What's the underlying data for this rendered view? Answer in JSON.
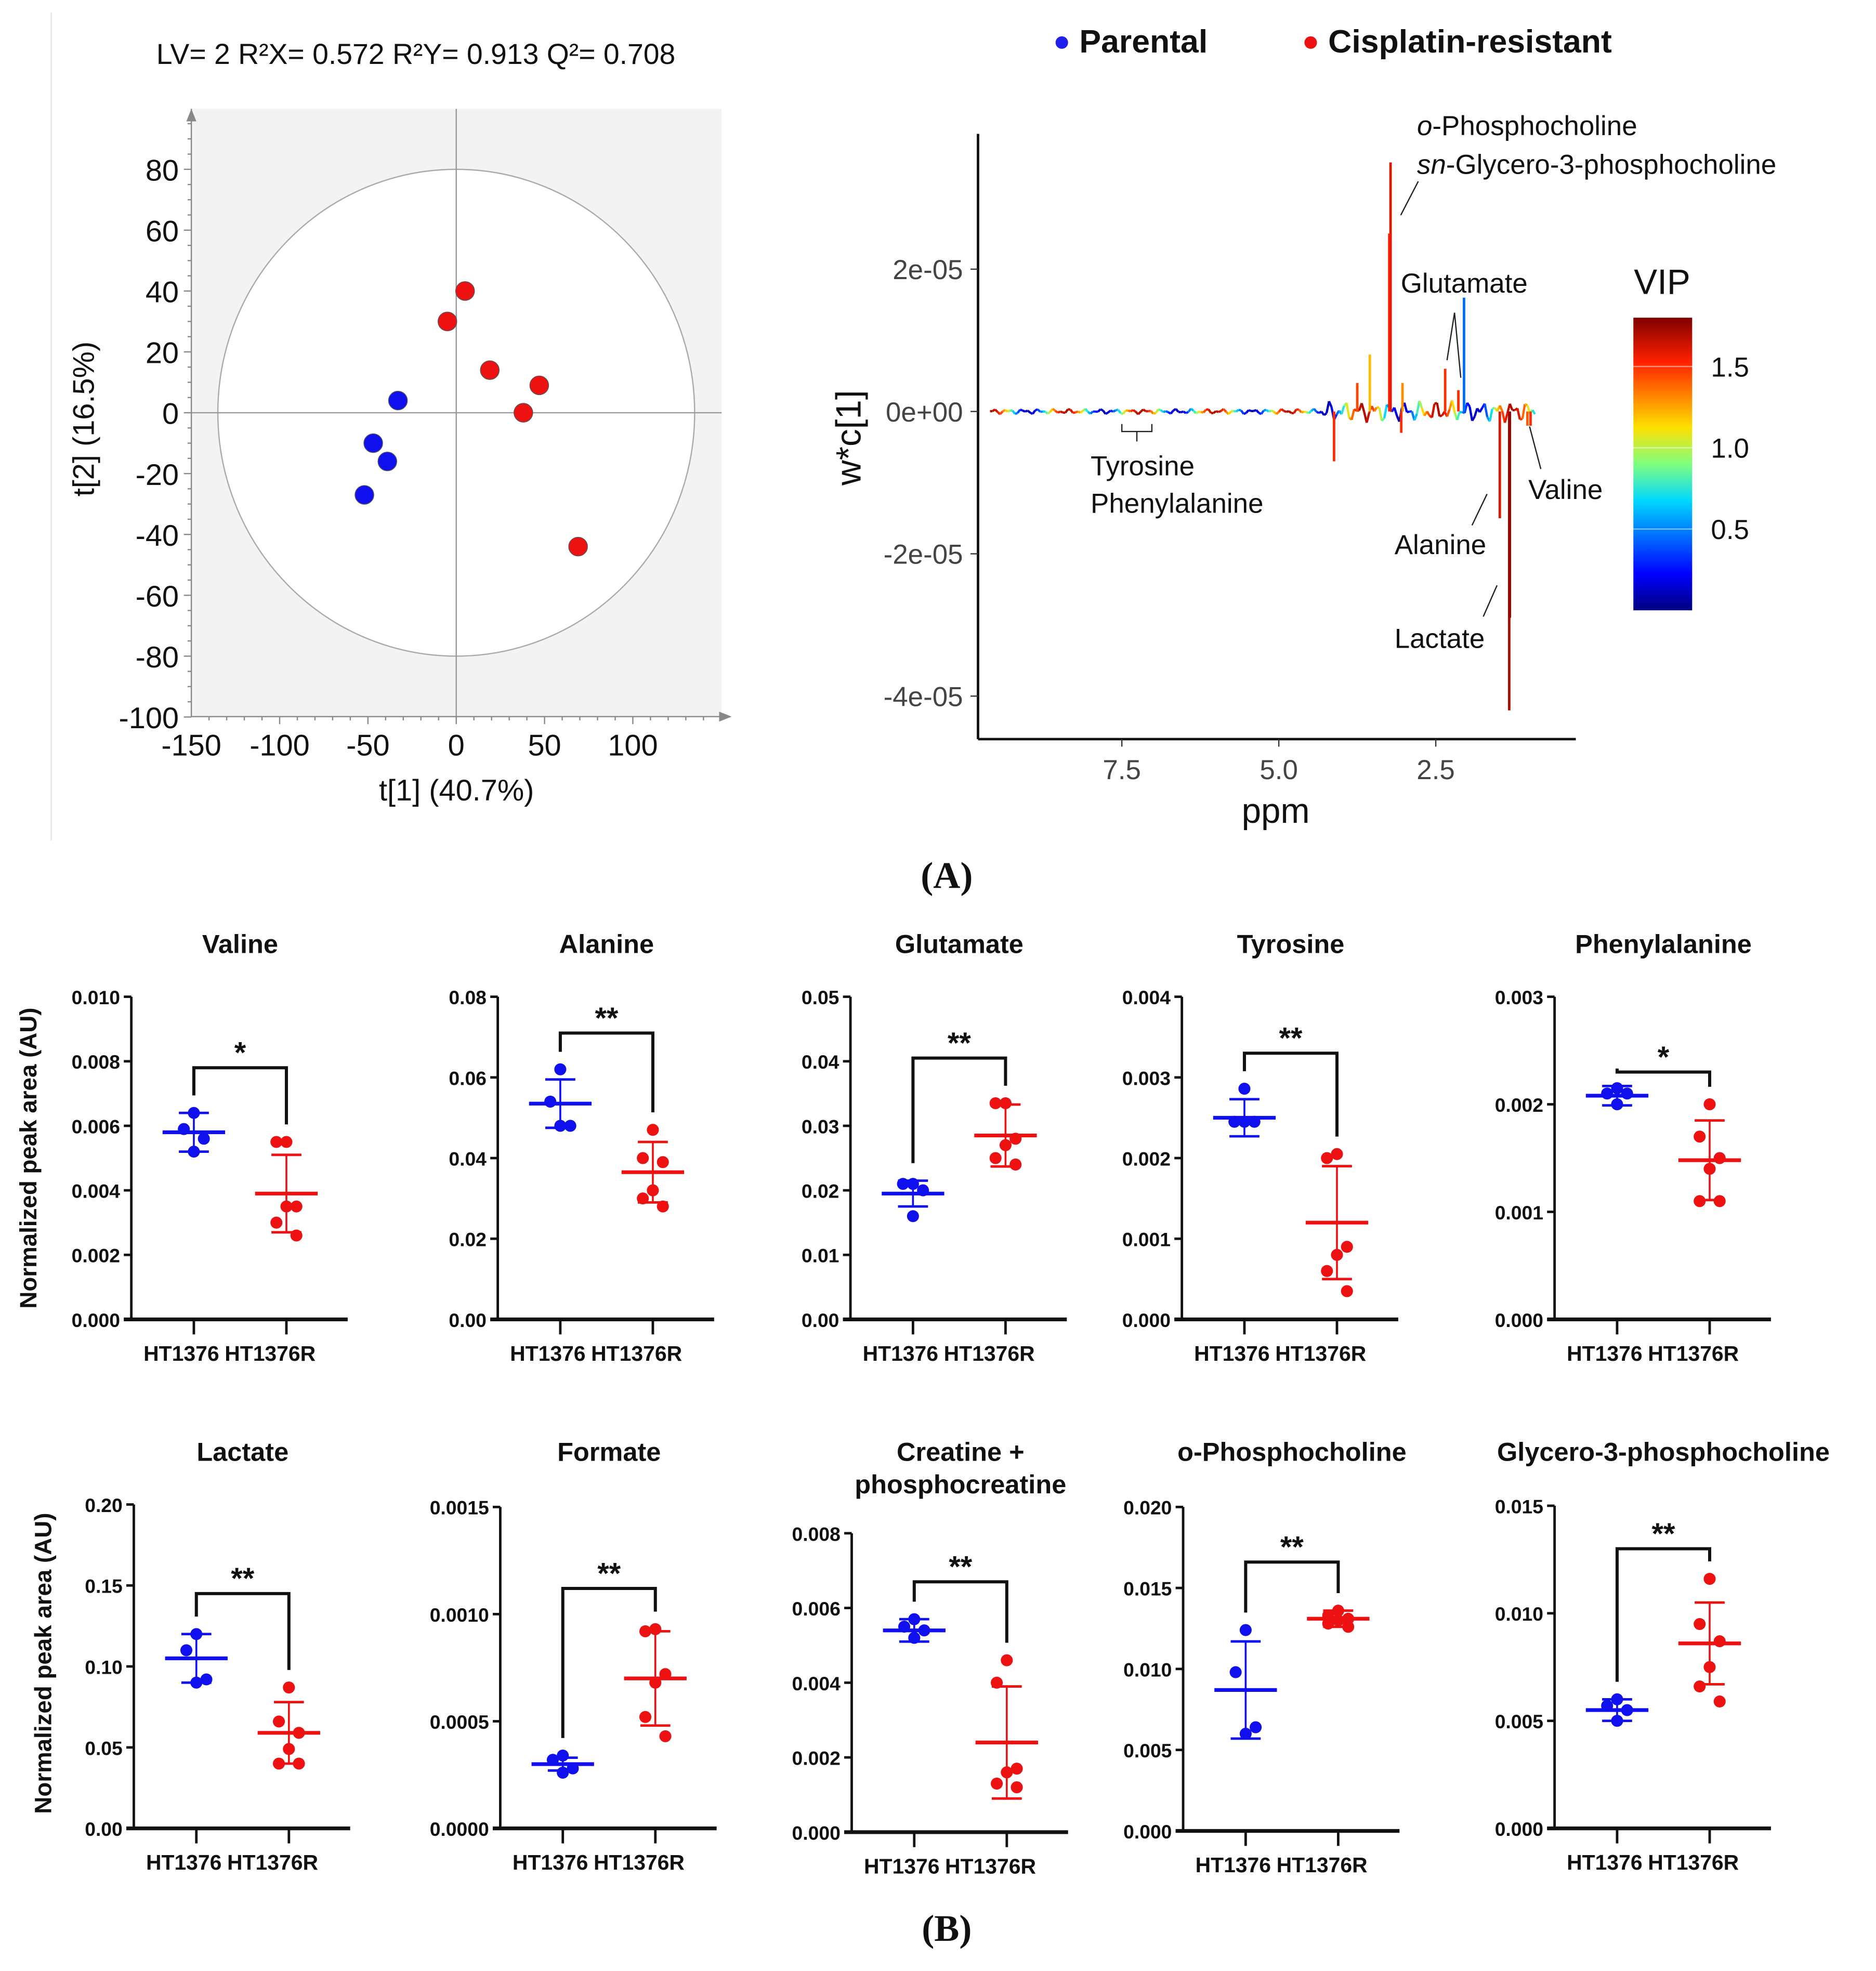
{
  "panel_labels": {
    "a": "(A)",
    "b": "(B)"
  },
  "legend": {
    "items": [
      {
        "label": "Parental",
        "color": "#2020ee"
      },
      {
        "label": "Cisplatin-resistant",
        "color": "#ee1111"
      }
    ]
  },
  "chart_data": [
    {
      "id": "scores",
      "type": "scatter",
      "title": "LV= 2  R²X= 0.572 R²Y= 0.913 Q²= 0.708",
      "xlabel": "t[1] (40.7%)",
      "ylabel": "t[2] (16.5%)",
      "xlim": [
        -150,
        150
      ],
      "ylim": [
        -100,
        100
      ],
      "xticks": [
        -150,
        -100,
        -50,
        0,
        50,
        100
      ],
      "yticks": [
        80,
        60,
        40,
        20,
        0,
        -20,
        -40,
        -60,
        -80,
        -100
      ],
      "hotelling_ellipse": {
        "rx": 135,
        "ry": 80
      },
      "series": [
        {
          "name": "Parental",
          "color": "#1010ee",
          "points": [
            [
              -33,
              4
            ],
            [
              -47,
              -10
            ],
            [
              -39,
              -16
            ],
            [
              -52,
              -27
            ]
          ]
        },
        {
          "name": "Cisplatin-resistant",
          "color": "#ee1111",
          "points": [
            [
              5,
              40
            ],
            [
              -5,
              30
            ],
            [
              19,
              14
            ],
            [
              47,
              9
            ],
            [
              38,
              0
            ],
            [
              69,
              -44
            ]
          ]
        }
      ]
    },
    {
      "id": "loadings",
      "type": "line",
      "xlabel": "ppm",
      "ylabel": "w*c[1]",
      "xlim": [
        9.6,
        0.9
      ],
      "ylim": [
        -4.5e-05,
        3.9e-05
      ],
      "xticks": [
        "7.5",
        "5.0",
        "2.5"
      ],
      "xtick_values": [
        7.5,
        5.0,
        2.5
      ],
      "yticks": [
        "2e-05",
        "0e+00",
        "-2e-05",
        "-4e-05"
      ],
      "ytick_values": [
        2e-05,
        0,
        -2e-05,
        -4e-05
      ],
      "colorbar": {
        "title": "VIP",
        "ticks": [
          "1.5",
          "1.0",
          "0.5"
        ],
        "tick_values": [
          1.5,
          1.0,
          0.5
        ],
        "range": [
          0,
          1.8
        ]
      },
      "peaks": [
        {
          "ppm": 3.22,
          "value": 3.5e-05,
          "vip": 1.6
        },
        {
          "ppm": 3.24,
          "value": 2.5e-05,
          "vip": 1.55
        },
        {
          "ppm": 2.05,
          "value": 1.6e-05,
          "vip": 0.45
        },
        {
          "ppm": 2.35,
          "value": 6e-06,
          "vip": 1.5
        },
        {
          "ppm": 2.14,
          "value": 3e-06,
          "vip": 1.5
        },
        {
          "ppm": 3.55,
          "value": 8e-06,
          "vip": 1.2
        },
        {
          "ppm": 3.75,
          "value": 4e-06,
          "vip": 1.45
        },
        {
          "ppm": 3.03,
          "value": 4e-06,
          "vip": 1.3
        },
        {
          "ppm": 4.12,
          "value": -7e-06,
          "vip": 1.5
        },
        {
          "ppm": 3.05,
          "value": -3e-06,
          "vip": 1.5
        },
        {
          "ppm": 1.48,
          "value": -1.5e-05,
          "vip": 1.6
        },
        {
          "ppm": 1.33,
          "value": -4.2e-05,
          "vip": 1.7
        },
        {
          "ppm": 1.32,
          "value": -2.9e-05,
          "vip": 1.75
        },
        {
          "ppm": 1.04,
          "value": -2e-06,
          "vip": 1.4
        },
        {
          "ppm": 0.99,
          "value": -2e-06,
          "vip": 1.5
        }
      ],
      "annotations": [
        {
          "label_italic": "o",
          "label": "-Phosphocholine"
        },
        {
          "label_italic": "sn",
          "label": "-Glycero-3-phosphocholine"
        },
        {
          "label": "Glutamate"
        },
        {
          "label": "Tyrosine"
        },
        {
          "label": "Phenylalanine"
        },
        {
          "label": "Valine"
        },
        {
          "label": "Alanine"
        },
        {
          "label": "Lactate"
        }
      ]
    }
  ],
  "dot_plots": {
    "ylabel": "Normalized peak area (AU)",
    "categories": [
      "HT1376",
      "HT1376R"
    ],
    "colors": [
      "#1010ee",
      "#ee1111"
    ],
    "panels": [
      {
        "title": [
          "Valine"
        ],
        "ymax": 0.01,
        "ticks": [
          "0.000",
          "0.002",
          "0.004",
          "0.006",
          "0.008",
          "0.010"
        ],
        "sig": "*",
        "bracket": 0.0078,
        "groups": [
          {
            "points": [
              0.0064,
              0.0059,
              0.0056,
              0.0052
            ],
            "mean": 0.0058,
            "sd": 0.0006
          },
          {
            "points": [
              0.0055,
              0.0055,
              0.0035,
              0.0035,
              0.003,
              0.0026
            ],
            "mean": 0.0039,
            "sd": 0.0012
          }
        ]
      },
      {
        "title": [
          "Alanine"
        ],
        "ymax": 0.08,
        "ticks": [
          "0.00",
          "0.02",
          "0.04",
          "0.06",
          "0.08"
        ],
        "sig": "**",
        "bracket": 0.071,
        "groups": [
          {
            "points": [
              0.062,
              0.054,
              0.048,
              0.048
            ],
            "mean": 0.0535,
            "sd": 0.006
          },
          {
            "points": [
              0.047,
              0.04,
              0.039,
              0.032,
              0.03,
              0.028
            ],
            "mean": 0.0365,
            "sd": 0.0075
          }
        ]
      },
      {
        "title": [
          "Glutamate"
        ],
        "ymax": 0.05,
        "ticks": [
          "0.00",
          "0.01",
          "0.02",
          "0.03",
          "0.04",
          "0.05"
        ],
        "sig": "**",
        "bracket": 0.0405,
        "groups": [
          {
            "points": [
              0.021,
              0.021,
              0.02,
              0.016
            ],
            "mean": 0.0195,
            "sd": 0.002
          },
          {
            "points": [
              0.0335,
              0.0335,
              0.028,
              0.027,
              0.025,
              0.024
            ],
            "mean": 0.0285,
            "sd": 0.0048
          }
        ]
      },
      {
        "title": [
          "Tyrosine"
        ],
        "ymax": 0.004,
        "ticks": [
          "0.000",
          "0.001",
          "0.002",
          "0.003",
          "0.004"
        ],
        "sig": "**",
        "bracket": 0.0033,
        "groups": [
          {
            "points": [
              0.00286,
              0.00245,
              0.00245,
              0.00245
            ],
            "mean": 0.0025,
            "sd": 0.00023
          },
          {
            "points": [
              0.00205,
              0.002,
              0.0009,
              0.0008,
              0.0006,
              0.00035
            ],
            "mean": 0.0012,
            "sd": 0.0007
          }
        ]
      },
      {
        "title": [
          "Phenylalanine"
        ],
        "ymax": 0.003,
        "ticks": [
          "0.000",
          "0.001",
          "0.002",
          "0.003"
        ],
        "sig": "*",
        "bracket": 0.0023,
        "groups": [
          {
            "points": [
              0.00215,
              0.0021,
              0.0021,
              0.002
            ],
            "mean": 0.00208,
            "sd": 9e-05
          },
          {
            "points": [
              0.002,
              0.0017,
              0.0015,
              0.0014,
              0.0011,
              0.0011
            ],
            "mean": 0.00148,
            "sd": 0.00037
          }
        ]
      },
      {
        "title": [
          "Lactate"
        ],
        "ymax": 0.2,
        "ticks": [
          "0.00",
          "0.05",
          "0.10",
          "0.15",
          "0.20"
        ],
        "sig": "**",
        "bracket": 0.145,
        "groups": [
          {
            "points": [
              0.12,
              0.11,
              0.092,
              0.09
            ],
            "mean": 0.105,
            "sd": 0.015
          },
          {
            "points": [
              0.087,
              0.066,
              0.059,
              0.049,
              0.04,
              0.04
            ],
            "mean": 0.059,
            "sd": 0.019
          }
        ]
      },
      {
        "title": [
          "Formate"
        ],
        "ymax": 0.0015,
        "ticks": [
          "0.0000",
          "0.0005",
          "0.0010",
          "0.0015"
        ],
        "sig": "**",
        "bracket": 0.00112,
        "groups": [
          {
            "points": [
              0.00034,
              0.00032,
              0.00028,
              0.00026
            ],
            "mean": 0.0003,
            "sd": 3e-05
          },
          {
            "points": [
              0.00093,
              0.00092,
              0.00072,
              0.00068,
              0.00052,
              0.00043
            ],
            "mean": 0.0007,
            "sd": 0.00022
          }
        ]
      },
      {
        "title": [
          "Creatine +",
          "phosphocreatine"
        ],
        "ymax": 0.008,
        "ticks": [
          "0.000",
          "0.002",
          "0.004",
          "0.006",
          "0.008"
        ],
        "sig": "**",
        "bracket": 0.0067,
        "groups": [
          {
            "points": [
              0.0057,
              0.0055,
              0.0054,
              0.0052
            ],
            "mean": 0.0054,
            "sd": 0.0003
          },
          {
            "points": [
              0.0046,
              0.004,
              0.0017,
              0.0016,
              0.0013,
              0.0012
            ],
            "mean": 0.0024,
            "sd": 0.0015
          }
        ]
      },
      {
        "title": [
          "o-Phosphocholine"
        ],
        "ymax": 0.02,
        "ticks": [
          "0.000",
          "0.005",
          "0.010",
          "0.015",
          "0.020"
        ],
        "sig": "**",
        "bracket": 0.0166,
        "groups": [
          {
            "points": [
              0.0124,
              0.0098,
              0.0064,
              0.006
            ],
            "mean": 0.0087,
            "sd": 0.003
          },
          {
            "points": [
              0.0136,
              0.0133,
              0.0131,
              0.013,
              0.0128,
              0.0126
            ],
            "mean": 0.0131,
            "sd": 0.0005
          }
        ]
      },
      {
        "title": [
          "Glycero-3-phosphocholine"
        ],
        "ymax": 0.015,
        "ticks": [
          "0.000",
          "0.005",
          "0.010",
          "0.015"
        ],
        "sig": "**",
        "bracket": 0.013,
        "groups": [
          {
            "points": [
              0.006,
              0.0057,
              0.0055,
              0.005
            ],
            "mean": 0.0055,
            "sd": 0.0005
          },
          {
            "points": [
              0.0116,
              0.0095,
              0.0087,
              0.0075,
              0.0066,
              0.0059
            ],
            "mean": 0.0086,
            "sd": 0.0019
          }
        ]
      }
    ]
  }
}
